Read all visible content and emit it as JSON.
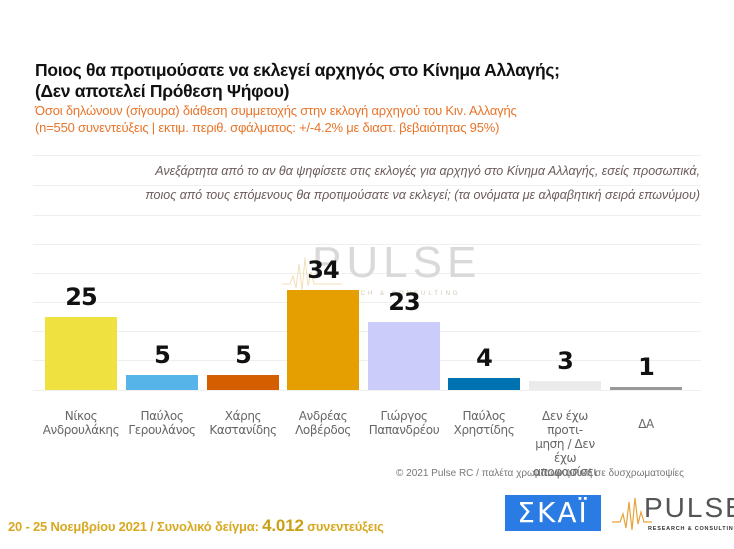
{
  "header": {
    "title_line1": "Ποιος θα προτιμούσατε να εκλεγεί αρχηγός στο Κίνημα Αλλαγής;",
    "title_line2": "(Δεν αποτελεί Πρόθεση Ψήφου)",
    "subtitle_line1": "Όσοι δηλώνουν (σίγουρα) διάθεση συμμετοχής στην εκλογή αρχηγού του Κιν. Αλλαγής",
    "subtitle_line2": "(n=550 συνεντεύξεις | εκτιμ. περιθ. σφάλματος: +/-4.2% με διαστ. βεβαιότητας 95%)"
  },
  "question": {
    "line1": "Ανεξάρτητα από το αν θα ψηφίσετε στις εκλογές για αρχηγό στο Κίνημα Αλλαγής, εσείς προσωπικά,",
    "line2": "ποιος από τους επόμενους θα προτιμούσατε να εκλεγεί; (τα ονόματα με αλφαβητική σειρά επωνύμου)"
  },
  "watermark": {
    "text": "PULSE",
    "sub": "RESEARCH & CONSULTING"
  },
  "chart_data": {
    "type": "bar",
    "title": "Ποιος θα προτιμούσατε να εκλεγεί αρχηγός στο Κίνημα Αλλαγής; (Δεν αποτελεί Πρόθεση Ψήφου)",
    "categories": [
      "Νίκος Ανδρουλάκης",
      "Παύλος Γερουλάνος",
      "Χάρης Καστανίδης",
      "Ανδρέας Λοβέρδος",
      "Γιώργος Παπανδρέου",
      "Παύλος Χρηστίδης",
      "Δεν έχω προτίμηση / Δεν έχω αποφασίσει",
      "ΔΑ"
    ],
    "values": [
      25,
      5,
      5,
      34,
      23,
      4,
      3,
      1
    ],
    "colors": [
      "#efe140",
      "#56b4e9",
      "#d55e00",
      "#e69f00",
      "#ccccfa",
      "#0072b2",
      "#ebebeb",
      "#999999"
    ],
    "labels": [
      [
        "Νίκος",
        "Ανδρουλάκης"
      ],
      [
        "Παύλος",
        "Γερουλάνος"
      ],
      [
        "Χάρης",
        "Καστανίδης"
      ],
      [
        "Ανδρέας",
        "Λοβέρδος"
      ],
      [
        "Γιώργος",
        "Παπανδρέου"
      ],
      [
        "Παύλος",
        "Χρηστίδης"
      ],
      [
        "Δεν έχω προτι-",
        "μηση / Δεν έχω",
        "αποφασίσει"
      ],
      [
        "ΔΑ"
      ]
    ],
    "xlabel": "",
    "ylabel": "",
    "ylim": [
      0,
      40
    ],
    "grid": true,
    "legend": "none"
  },
  "footer": {
    "copyright": "© 2021 Pulse RC  /  παλέτα χρωμάτων φιλική σε δυσχρωματοψίες",
    "dates": "20 - 25  Νοεμβρίου 2021  /  Συνολικό δείγμα:",
    "sample": "4.012",
    "sample_suffix": "συνεντεύξεις"
  },
  "logos": {
    "skai": "ΣΚΑΪ",
    "pulse": "PULSE",
    "pulse_sub": "RESEARCH & CONSULTING"
  }
}
